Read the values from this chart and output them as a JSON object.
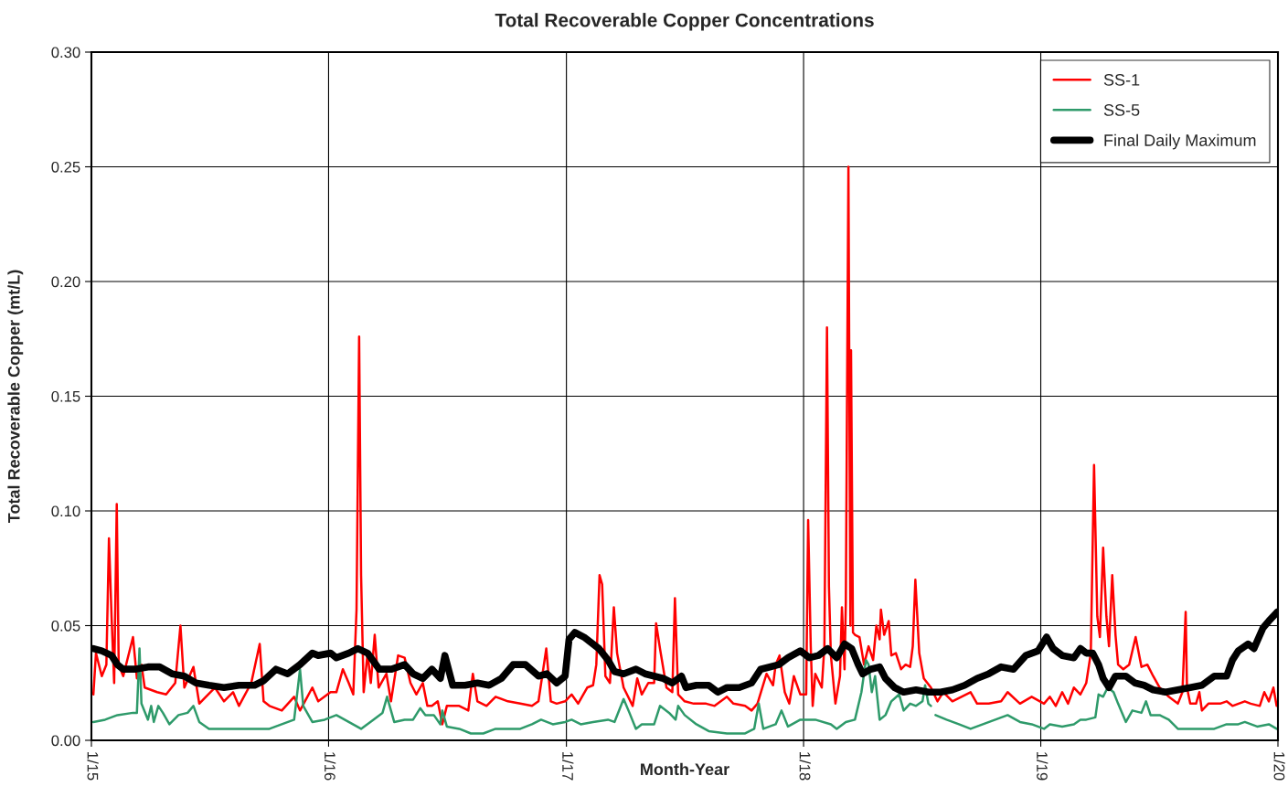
{
  "chart_data": {
    "type": "line",
    "title": "Total Recoverable Copper Concentrations",
    "xlabel": "Month-Year",
    "ylabel": "Total Recoverable Copper (mt/L)",
    "xlim": [
      "2015-01",
      "2020-01"
    ],
    "xticks": [
      {
        "value": "2015-01",
        "label": "1/15"
      },
      {
        "value": "2016-01",
        "label": "1/16"
      },
      {
        "value": "2017-01",
        "label": "1/17"
      },
      {
        "value": "2018-01",
        "label": "1/18"
      },
      {
        "value": "2019-01",
        "label": "1/19"
      },
      {
        "value": "2020-01",
        "label": "1/20"
      }
    ],
    "ylim": [
      0,
      0.3
    ],
    "yticks": [
      {
        "value": 0,
        "label": "0.00"
      },
      {
        "value": 0.05,
        "label": "0.05"
      },
      {
        "value": 0.1,
        "label": "0.10"
      },
      {
        "value": 0.15,
        "label": "0.15"
      },
      {
        "value": 0.2,
        "label": "0.20"
      },
      {
        "value": 0.25,
        "label": "0.25"
      },
      {
        "value": 0.3,
        "label": "0.30"
      }
    ],
    "grid": true,
    "legend": "top right",
    "marker": "none",
    "line_style": "solid",
    "series": [
      {
        "name": "SS-1",
        "color": "#ff0000",
        "x": [
          "2015-01-04",
          "2015-01-08",
          "2015-01-17",
          "2015-01-24",
          "2015-01-28",
          "2015-02-01",
          "2015-02-05",
          "2015-02-09",
          "2015-02-12",
          "2015-02-19",
          "2015-03-06",
          "2015-03-12",
          "2015-03-19",
          "2015-03-24",
          "2015-04-12",
          "2015-04-26",
          "2015-05-10",
          "2015-05-18",
          "2015-05-24",
          "2015-06-07",
          "2015-06-16",
          "2015-07-10",
          "2015-07-24",
          "2015-08-07",
          "2015-08-16",
          "2015-09-04",
          "2015-09-17",
          "2015-09-23",
          "2015-10-02",
          "2015-10-21",
          "2015-11-09",
          "2015-11-18",
          "2015-12-07",
          "2015-12-16",
          "2016-01-04",
          "2016-01-13",
          "2016-01-23",
          "2016-02-01",
          "2016-02-08",
          "2016-02-13",
          "2016-02-17",
          "2016-02-20",
          "2016-02-24",
          "2016-03-01",
          "2016-03-06",
          "2016-03-12",
          "2016-03-18",
          "2016-03-30",
          "2016-04-06",
          "2016-04-17",
          "2016-04-27",
          "2016-05-06",
          "2016-05-15",
          "2016-05-25",
          "2016-06-01",
          "2016-06-08",
          "2016-06-17",
          "2016-06-24",
          "2016-07-01",
          "2016-07-20",
          "2016-08-03",
          "2016-08-10",
          "2016-08-17",
          "2016-08-31",
          "2016-09-14",
          "2016-10-03",
          "2016-10-22",
          "2016-11-09",
          "2016-11-19",
          "2016-12-01",
          "2016-12-08",
          "2016-12-17",
          "2016-12-30",
          "2017-01-09",
          "2017-01-19",
          "2017-02-02",
          "2017-02-11",
          "2017-02-16",
          "2017-02-21",
          "2017-02-25",
          "2017-03-02",
          "2017-03-09",
          "2017-03-15",
          "2017-03-20",
          "2017-03-30",
          "2017-04-13",
          "2017-04-20",
          "2017-04-27",
          "2017-05-07",
          "2017-05-16",
          "2017-05-19",
          "2017-05-25",
          "2017-06-04",
          "2017-06-13",
          "2017-06-17",
          "2017-06-22",
          "2017-07-02",
          "2017-07-16",
          "2017-08-04",
          "2017-08-17",
          "2017-09-05",
          "2017-09-15",
          "2017-10-03",
          "2017-10-13",
          "2017-10-22",
          "2017-11-05",
          "2017-11-15",
          "2017-11-19",
          "2017-11-25",
          "2017-12-03",
          "2017-12-10",
          "2017-12-17",
          "2017-12-27",
          "2017-12-31",
          "2018-01-05",
          "2018-01-08",
          "2018-01-12",
          "2018-01-15",
          "2018-01-19",
          "2018-01-29",
          "2018-02-02",
          "2018-02-06",
          "2018-02-09",
          "2018-02-12",
          "2018-02-19",
          "2018-02-26",
          "2018-03-01",
          "2018-03-05",
          "2018-03-07",
          "2018-03-11",
          "2018-03-14",
          "2018-03-15",
          "2018-03-18",
          "2018-03-21",
          "2018-03-28",
          "2018-04-04",
          "2018-04-11",
          "2018-04-18",
          "2018-04-23",
          "2018-04-28",
          "2018-04-30",
          "2018-05-05",
          "2018-05-12",
          "2018-05-16",
          "2018-05-23",
          "2018-05-31",
          "2018-06-07",
          "2018-06-14",
          "2018-06-18",
          "2018-06-22",
          "2018-06-28",
          "2018-07-05",
          "2018-07-16",
          "2018-07-26",
          "2018-08-04",
          "2018-08-18",
          "2018-09-01",
          "2018-09-15",
          "2018-09-25",
          "2018-10-13",
          "2018-11-01",
          "2018-11-11",
          "2018-11-30",
          "2018-12-18",
          "2019-01-06",
          "2019-01-15",
          "2019-01-24",
          "2019-02-03",
          "2019-02-12",
          "2019-02-21",
          "2019-03-03",
          "2019-03-12",
          "2019-03-19",
          "2019-03-24",
          "2019-03-29",
          "2019-04-02",
          "2019-04-07",
          "2019-04-12",
          "2019-04-16",
          "2019-04-21",
          "2019-04-26",
          "2019-04-30",
          "2019-05-08",
          "2019-05-17",
          "2019-05-27",
          "2019-06-05",
          "2019-06-14",
          "2019-06-23",
          "2019-07-03",
          "2019-07-17",
          "2019-07-31",
          "2019-08-07",
          "2019-08-12",
          "2019-08-14",
          "2019-08-19",
          "2019-08-28",
          "2019-09-02",
          "2019-09-06",
          "2019-09-16",
          "2019-10-04",
          "2019-10-14",
          "2019-10-23",
          "2019-11-11",
          "2019-11-20",
          "2019-12-04",
          "2019-12-11",
          "2019-12-18",
          "2019-12-25",
          "2019-12-30"
        ],
        "values": [
          0.02,
          0.038,
          0.028,
          0.033,
          0.088,
          0.054,
          0.025,
          0.103,
          0.033,
          0.028,
          0.045,
          0.027,
          0.033,
          0.023,
          0.021,
          0.02,
          0.025,
          0.05,
          0.023,
          0.032,
          0.016,
          0.023,
          0.017,
          0.021,
          0.015,
          0.025,
          0.042,
          0.017,
          0.015,
          0.013,
          0.019,
          0.013,
          0.023,
          0.017,
          0.021,
          0.021,
          0.031,
          0.025,
          0.02,
          0.057,
          0.176,
          0.072,
          0.021,
          0.038,
          0.025,
          0.046,
          0.023,
          0.029,
          0.017,
          0.037,
          0.036,
          0.025,
          0.02,
          0.025,
          0.015,
          0.015,
          0.017,
          0.007,
          0.015,
          0.015,
          0.013,
          0.029,
          0.017,
          0.015,
          0.019,
          0.017,
          0.016,
          0.015,
          0.017,
          0.04,
          0.017,
          0.016,
          0.017,
          0.02,
          0.016,
          0.023,
          0.024,
          0.033,
          0.072,
          0.068,
          0.028,
          0.025,
          0.058,
          0.038,
          0.023,
          0.015,
          0.027,
          0.02,
          0.025,
          0.025,
          0.051,
          0.04,
          0.023,
          0.021,
          0.062,
          0.02,
          0.017,
          0.016,
          0.016,
          0.015,
          0.019,
          0.016,
          0.015,
          0.013,
          0.016,
          0.029,
          0.024,
          0.033,
          0.037,
          0.021,
          0.016,
          0.028,
          0.02,
          0.02,
          0.02,
          0.096,
          0.041,
          0.015,
          0.029,
          0.023,
          0.041,
          0.18,
          0.067,
          0.037,
          0.016,
          0.028,
          0.058,
          0.031,
          0.06,
          0.25,
          0.05,
          0.17,
          0.047,
          0.046,
          0.045,
          0.033,
          0.041,
          0.035,
          0.05,
          0.044,
          0.057,
          0.046,
          0.052,
          0.037,
          0.038,
          0.031,
          0.033,
          0.032,
          0.041,
          0.07,
          0.038,
          0.027,
          0.023,
          0.017,
          0.021,
          0.017,
          0.019,
          0.021,
          0.016,
          0.016,
          0.017,
          0.021,
          0.016,
          0.019,
          0.016,
          0.019,
          0.015,
          0.021,
          0.016,
          0.023,
          0.02,
          0.025,
          0.038,
          0.12,
          0.054,
          0.045,
          0.084,
          0.054,
          0.041,
          0.072,
          0.046,
          0.033,
          0.031,
          0.033,
          0.045,
          0.032,
          0.033,
          0.028,
          0.023,
          0.019,
          0.016,
          0.021,
          0.056,
          0.023,
          0.016,
          0.016,
          0.021,
          0.013,
          0.016,
          0.016,
          0.017,
          0.015,
          0.017,
          0.016,
          0.015,
          0.021,
          0.017,
          0.023,
          0.015
        ]
      },
      {
        "name": "SS-5",
        "color": "#2e9a6a",
        "x": [
          "2015-01-04",
          "2015-01-22",
          "2015-02-10",
          "2015-03-06",
          "2015-03-12",
          "2015-03-16",
          "2015-03-19",
          "2015-03-29",
          "2015-04-03",
          "2015-04-07",
          "2015-04-14",
          "2015-04-21",
          "2015-05-01",
          "2015-05-15",
          "2015-05-29",
          "2015-06-07",
          "2015-06-16",
          "2015-07-01",
          "2015-07-24",
          "2015-08-16",
          "2015-09-09",
          "2015-10-02",
          "2015-10-21",
          "2015-11-09",
          "2015-11-18",
          "2015-11-23",
          "2015-12-07",
          "2015-12-26",
          "2016-01-13",
          "2016-02-01",
          "2016-02-20",
          "2016-03-10",
          "2016-03-24",
          "2016-03-31",
          "2016-04-06",
          "2016-04-11",
          "2016-04-27",
          "2016-05-10",
          "2016-05-21",
          "2016-05-29",
          "2016-06-11",
          "2016-06-21",
          "2016-06-24",
          "2016-07-01",
          "2016-07-20",
          "2016-08-07",
          "2016-08-26",
          "2016-09-14",
          "2016-10-03",
          "2016-10-22",
          "2016-11-09",
          "2016-11-23",
          "2016-12-11",
          "2016-12-30",
          "2017-01-09",
          "2017-01-23",
          "2017-02-11",
          "2017-03-06",
          "2017-03-16",
          "2017-03-30",
          "2017-04-08",
          "2017-04-18",
          "2017-04-27",
          "2017-05-16",
          "2017-05-25",
          "2017-06-08",
          "2017-06-18",
          "2017-06-22",
          "2017-07-02",
          "2017-07-20",
          "2017-08-08",
          "2017-09-05",
          "2017-10-03",
          "2017-10-17",
          "2017-10-24",
          "2017-10-31",
          "2017-11-19",
          "2017-11-28",
          "2017-12-08",
          "2017-12-27",
          "2018-01-19",
          "2018-02-12",
          "2018-02-21",
          "2018-03-07",
          "2018-03-21",
          "2018-03-31",
          "2018-04-07",
          "2018-04-11",
          "2018-04-16",
          "2018-04-21",
          "2018-04-28",
          "2018-05-07",
          "2018-05-16",
          "2018-05-28",
          "2018-06-04",
          "2018-06-14",
          "2018-06-23",
          "2018-07-03",
          "2018-07-07",
          "2018-07-12",
          "2018-07-16",
          "2018-07-19",
          "2018-07-23",
          "2018-08-09",
          "2018-08-28",
          "2018-09-15",
          "2018-10-04",
          "2018-10-23",
          "2018-11-11",
          "2018-11-30",
          "2018-12-18",
          "2019-01-06",
          "2019-01-15",
          "2019-02-03",
          "2019-02-21",
          "2019-03-03",
          "2019-03-12",
          "2019-03-26",
          "2019-03-31",
          "2019-04-07",
          "2019-04-14",
          "2019-04-23",
          "2019-04-30",
          "2019-05-12",
          "2019-05-22",
          "2019-06-05",
          "2019-06-12",
          "2019-06-19",
          "2019-07-03",
          "2019-07-17",
          "2019-07-31",
          "2019-08-19",
          "2019-09-06",
          "2019-09-25",
          "2019-10-14",
          "2019-11-01",
          "2019-11-11",
          "2019-11-30",
          "2019-12-18",
          "2019-12-30"
        ],
        "values": [
          0.008,
          0.009,
          0.011,
          0.012,
          0.012,
          0.04,
          0.016,
          0.009,
          0.015,
          0.008,
          0.015,
          0.012,
          0.007,
          0.011,
          0.012,
          0.015,
          0.008,
          0.005,
          0.005,
          0.005,
          0.005,
          0.005,
          0.007,
          0.009,
          0.031,
          0.015,
          0.008,
          0.009,
          0.011,
          0.008,
          0.005,
          0.009,
          0.012,
          0.019,
          0.013,
          0.008,
          0.009,
          0.009,
          0.014,
          0.011,
          0.011,
          0.007,
          0.013,
          0.006,
          0.005,
          0.003,
          0.003,
          0.005,
          0.005,
          0.005,
          0.007,
          0.009,
          0.007,
          0.008,
          0.009,
          0.007,
          0.008,
          0.009,
          0.008,
          0.018,
          0.012,
          0.005,
          0.007,
          0.007,
          0.015,
          0.012,
          0.009,
          0.015,
          0.011,
          0.007,
          0.004,
          0.003,
          0.003,
          0.005,
          0.016,
          0.005,
          0.007,
          0.013,
          0.006,
          0.009,
          0.009,
          0.007,
          0.005,
          0.008,
          0.009,
          0.021,
          0.035,
          0.033,
          0.021,
          0.028,
          0.009,
          0.011,
          0.017,
          0.02,
          0.013,
          0.016,
          0.015,
          0.017,
          0.024,
          0.016,
          0.015,
          null,
          0.011,
          0.009,
          0.007,
          0.005,
          0.007,
          0.009,
          0.011,
          0.008,
          0.007,
          0.005,
          0.007,
          0.006,
          0.007,
          0.009,
          0.009,
          0.01,
          0.02,
          0.019,
          0.023,
          0.021,
          0.016,
          0.008,
          0.013,
          0.012,
          0.017,
          0.011,
          0.011,
          0.009,
          0.005,
          0.005,
          0.005,
          0.005,
          0.007,
          0.007,
          0.008,
          0.006,
          0.007,
          0.005
        ]
      },
      {
        "name": "Final Daily Maximum",
        "color": "#000000",
        "x": [
          "2015-01-04",
          "2015-01-17",
          "2015-02-01",
          "2015-02-10",
          "2015-02-19",
          "2015-03-09",
          "2015-03-29",
          "2015-04-16",
          "2015-05-05",
          "2015-05-24",
          "2015-06-11",
          "2015-07-01",
          "2015-07-24",
          "2015-08-16",
          "2015-09-09",
          "2015-09-23",
          "2015-10-12",
          "2015-10-30",
          "2015-11-18",
          "2015-12-07",
          "2015-12-16",
          "2016-01-04",
          "2016-01-13",
          "2016-02-01",
          "2016-02-15",
          "2016-03-01",
          "2016-03-19",
          "2016-04-07",
          "2016-04-27",
          "2016-05-10",
          "2016-05-25",
          "2016-06-08",
          "2016-06-21",
          "2016-06-28",
          "2016-07-10",
          "2016-07-29",
          "2016-08-17",
          "2016-09-04",
          "2016-09-23",
          "2016-10-11",
          "2016-10-30",
          "2016-11-19",
          "2016-12-02",
          "2016-12-17",
          "2016-12-30",
          "2017-01-05",
          "2017-01-14",
          "2017-01-28",
          "2017-02-20",
          "2017-03-06",
          "2017-03-16",
          "2017-03-30",
          "2017-04-18",
          "2017-05-02",
          "2017-05-16",
          "2017-05-30",
          "2017-06-13",
          "2017-06-27",
          "2017-07-04",
          "2017-07-20",
          "2017-08-08",
          "2017-08-22",
          "2017-09-05",
          "2017-09-24",
          "2017-10-13",
          "2017-10-27",
          "2017-11-10",
          "2017-11-24",
          "2017-12-08",
          "2017-12-27",
          "2018-01-10",
          "2018-01-24",
          "2018-02-07",
          "2018-02-21",
          "2018-03-05",
          "2018-03-16",
          "2018-03-26",
          "2018-04-02",
          "2018-04-14",
          "2018-04-28",
          "2018-05-07",
          "2018-05-21",
          "2018-06-04",
          "2018-06-23",
          "2018-07-12",
          "2018-07-31",
          "2018-08-18",
          "2018-09-06",
          "2018-09-25",
          "2018-10-13",
          "2018-11-01",
          "2018-11-20",
          "2018-12-09",
          "2018-12-28",
          "2019-01-10",
          "2019-01-20",
          "2019-02-03",
          "2019-02-21",
          "2019-03-03",
          "2019-03-12",
          "2019-03-22",
          "2019-03-31",
          "2019-04-07",
          "2019-04-16",
          "2019-04-26",
          "2019-05-12",
          "2019-05-26",
          "2019-06-09",
          "2019-06-23",
          "2019-07-12",
          "2019-07-31",
          "2019-08-19",
          "2019-09-06",
          "2019-09-25",
          "2019-10-14",
          "2019-10-23",
          "2019-11-01",
          "2019-11-16",
          "2019-11-25",
          "2019-12-09",
          "2019-12-18",
          "2019-12-28",
          "2019-12-31"
        ],
        "values": [
          0.04,
          0.039,
          0.037,
          0.033,
          0.031,
          0.031,
          0.032,
          0.032,
          0.029,
          0.028,
          0.025,
          0.024,
          0.023,
          0.024,
          0.024,
          0.026,
          0.031,
          0.029,
          0.033,
          0.038,
          0.037,
          0.038,
          0.036,
          0.038,
          0.04,
          0.038,
          0.031,
          0.031,
          0.033,
          0.029,
          0.027,
          0.031,
          0.027,
          0.037,
          0.024,
          0.024,
          0.025,
          0.024,
          0.027,
          0.033,
          0.033,
          0.028,
          0.029,
          0.025,
          0.028,
          0.044,
          0.047,
          0.045,
          0.04,
          0.035,
          0.03,
          0.029,
          0.031,
          0.029,
          0.028,
          0.027,
          0.025,
          0.028,
          0.023,
          0.024,
          0.024,
          0.021,
          0.023,
          0.023,
          0.025,
          0.031,
          0.032,
          0.033,
          0.036,
          0.039,
          0.036,
          0.037,
          0.04,
          0.036,
          0.042,
          0.04,
          0.033,
          0.029,
          0.031,
          0.032,
          0.027,
          0.023,
          0.021,
          0.022,
          0.021,
          0.021,
          0.022,
          0.024,
          0.027,
          0.029,
          0.032,
          0.031,
          0.037,
          0.039,
          0.045,
          0.04,
          0.037,
          0.036,
          0.04,
          0.038,
          0.038,
          0.033,
          0.027,
          0.023,
          0.028,
          0.028,
          0.025,
          0.024,
          0.022,
          0.021,
          0.022,
          0.023,
          0.024,
          0.028,
          0.028,
          0.035,
          0.039,
          0.042,
          0.04,
          0.049,
          0.052,
          0.055,
          0.056
        ]
      }
    ]
  }
}
